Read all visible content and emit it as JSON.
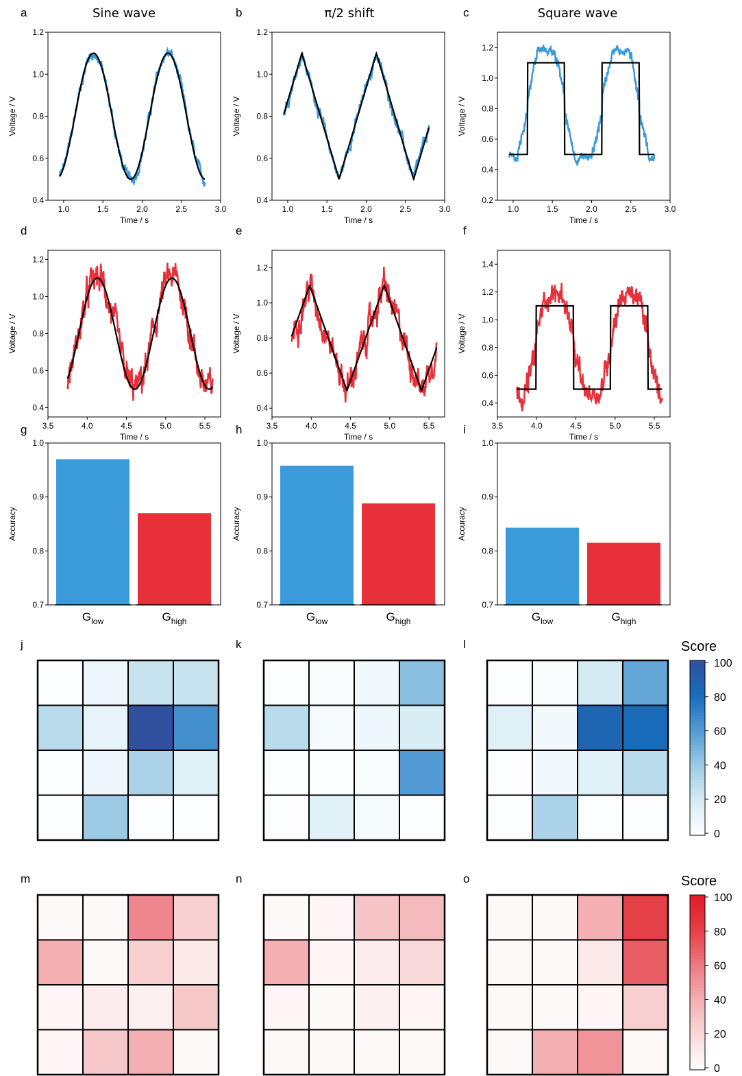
{
  "column_titles": [
    "Sine wave",
    "π/2 shift",
    "Square wave"
  ],
  "colors": {
    "blue": "#3b9ad9",
    "red": "#e8303a",
    "black": "#000000"
  },
  "chart_data": [
    {
      "panel": "a",
      "type": "line",
      "xlabel": "Time / s",
      "ylabel": "Voltage / V",
      "xlim": [
        0.8,
        3.0
      ],
      "ylim": [
        0.4,
        1.2
      ],
      "xticks": [
        "1.0",
        "1.5",
        "2.0",
        "2.5",
        "3.0"
      ],
      "yticks": [
        "0.4",
        "0.6",
        "0.8",
        "1.0",
        "1.2"
      ],
      "shape": "sine",
      "x": [
        0.95,
        2.8
      ],
      "amp": [
        0.5,
        1.1
      ],
      "period": 0.95,
      "peak": 1.38,
      "noise": "low",
      "noise_color": "blue"
    },
    {
      "panel": "b",
      "type": "line",
      "xlabel": "Time / s",
      "ylabel": "Voltage / V",
      "xlim": [
        0.8,
        3.0
      ],
      "ylim": [
        0.4,
        1.2
      ],
      "xticks": [
        "1.0",
        "1.5",
        "2.0",
        "2.5",
        "3.0"
      ],
      "yticks": [
        "0.4",
        "0.6",
        "0.8",
        "1.0",
        "1.2"
      ],
      "shape": "triangle",
      "x": [
        0.95,
        2.8
      ],
      "amp": [
        0.5,
        1.1
      ],
      "period": 0.95,
      "peak": 1.18,
      "noise": "low",
      "noise_color": "blue"
    },
    {
      "panel": "c",
      "type": "line",
      "xlabel": "Time / s",
      "ylabel": "Voltage / V",
      "xlim": [
        0.8,
        3.0
      ],
      "ylim": [
        0.2,
        1.3
      ],
      "xticks": [
        "1.0",
        "1.5",
        "2.0",
        "2.5",
        "3.0"
      ],
      "yticks": [
        "0.2",
        "0.4",
        "0.6",
        "0.8",
        "1.0",
        "1.2"
      ],
      "shape": "square",
      "x": [
        0.95,
        2.8
      ],
      "amp": [
        0.5,
        1.1
      ],
      "period": 0.95,
      "peak": 1.42,
      "noise": "low",
      "noise_color": "blue"
    },
    {
      "panel": "d",
      "type": "line",
      "xlabel": "Time / s",
      "ylabel": "Voltage / V",
      "xlim": [
        3.5,
        5.7
      ],
      "ylim": [
        0.35,
        1.25
      ],
      "xticks": [
        "3.5",
        "4.0",
        "4.5",
        "5.0",
        "5.5"
      ],
      "yticks": [
        "0.4",
        "0.6",
        "0.8",
        "1.0",
        "1.2"
      ],
      "shape": "sine",
      "x": [
        3.75,
        5.6
      ],
      "amp": [
        0.5,
        1.1
      ],
      "period": 0.95,
      "peak": 4.13,
      "noise": "high",
      "noise_color": "red"
    },
    {
      "panel": "e",
      "type": "line",
      "xlabel": "Time / s",
      "ylabel": "Voltage / V",
      "xlim": [
        3.5,
        5.7
      ],
      "ylim": [
        0.35,
        1.3
      ],
      "xticks": [
        "3.5",
        "4.0",
        "4.5",
        "5.0",
        "5.5"
      ],
      "yticks": [
        "0.4",
        "0.6",
        "0.8",
        "1.0",
        "1.2"
      ],
      "shape": "triangle",
      "x": [
        3.75,
        5.6
      ],
      "amp": [
        0.5,
        1.1
      ],
      "period": 0.95,
      "peak": 3.98,
      "noise": "high",
      "noise_color": "red"
    },
    {
      "panel": "f",
      "type": "line",
      "xlabel": "Time / s",
      "ylabel": "Voltage / V",
      "xlim": [
        3.5,
        5.7
      ],
      "ylim": [
        0.3,
        1.5
      ],
      "xticks": [
        "3.5",
        "4.0",
        "4.5",
        "5.0",
        "5.5"
      ],
      "yticks": [
        "0.4",
        "0.6",
        "0.8",
        "1.0",
        "1.2",
        "1.4"
      ],
      "shape": "square",
      "x": [
        3.75,
        5.6
      ],
      "amp": [
        0.5,
        1.1
      ],
      "period": 0.95,
      "peak": 4.23,
      "noise": "high",
      "noise_color": "red"
    },
    {
      "panel": "g",
      "type": "bar",
      "ylabel": "Accuracy",
      "ylim": [
        0.7,
        1.0
      ],
      "yticks": [
        "0.7",
        "0.8",
        "0.9",
        "1.0"
      ],
      "categories": [
        {
          "base": "G",
          "sub": "low"
        },
        {
          "base": "G",
          "sub": "high"
        }
      ],
      "values": [
        0.97,
        0.87
      ]
    },
    {
      "panel": "h",
      "type": "bar",
      "ylabel": "Accuracy",
      "ylim": [
        0.7,
        1.0
      ],
      "yticks": [
        "0.7",
        "0.8",
        "0.9",
        "1.0"
      ],
      "categories": [
        {
          "base": "G",
          "sub": "low"
        },
        {
          "base": "G",
          "sub": "high"
        }
      ],
      "values": [
        0.958,
        0.888
      ]
    },
    {
      "panel": "i",
      "type": "bar",
      "ylabel": "Accuracy",
      "ylim": [
        0.7,
        1.0
      ],
      "yticks": [
        "0.7",
        "0.8",
        "0.9",
        "1.0"
      ],
      "categories": [
        {
          "base": "G",
          "sub": "low"
        },
        {
          "base": "G",
          "sub": "high"
        }
      ],
      "values": [
        0.843,
        0.815
      ]
    },
    {
      "panel": "j",
      "type": "heatmap",
      "palette": "blue",
      "values": [
        [
          2,
          8,
          25,
          25
        ],
        [
          30,
          12,
          100,
          65
        ],
        [
          2,
          8,
          35,
          15
        ],
        [
          2,
          40,
          2,
          2
        ]
      ]
    },
    {
      "panel": "k",
      "type": "heatmap",
      "palette": "blue",
      "values": [
        [
          2,
          3,
          6,
          45
        ],
        [
          30,
          5,
          8,
          18
        ],
        [
          2,
          2,
          3,
          60
        ],
        [
          2,
          15,
          5,
          2
        ]
      ]
    },
    {
      "panel": "l",
      "type": "heatmap",
      "palette": "blue",
      "values": [
        [
          2,
          3,
          20,
          55
        ],
        [
          15,
          6,
          85,
          80
        ],
        [
          2,
          6,
          15,
          30
        ],
        [
          2,
          35,
          2,
          2
        ]
      ]
    },
    {
      "panel": "m",
      "type": "heatmap",
      "palette": "red",
      "values": [
        [
          3,
          3,
          55,
          25
        ],
        [
          40,
          3,
          25,
          12
        ],
        [
          5,
          10,
          8,
          28
        ],
        [
          5,
          28,
          40,
          3
        ]
      ]
    },
    {
      "panel": "n",
      "type": "heatmap",
      "palette": "red",
      "values": [
        [
          3,
          5,
          30,
          35
        ],
        [
          40,
          5,
          10,
          20
        ],
        [
          5,
          3,
          8,
          5
        ],
        [
          3,
          3,
          3,
          3
        ]
      ]
    },
    {
      "panel": "o",
      "type": "heatmap",
      "palette": "red",
      "values": [
        [
          3,
          3,
          40,
          80
        ],
        [
          3,
          3,
          12,
          70
        ],
        [
          3,
          3,
          5,
          25
        ],
        [
          3,
          40,
          50,
          3
        ]
      ]
    }
  ],
  "colorbars": [
    {
      "title": "Score",
      "palette": "blue",
      "ticks": [
        "0",
        "20",
        "40",
        "60",
        "80",
        "100"
      ]
    },
    {
      "title": "Score",
      "palette": "red",
      "ticks": [
        "0",
        "20",
        "40",
        "60",
        "80",
        "100"
      ]
    }
  ]
}
